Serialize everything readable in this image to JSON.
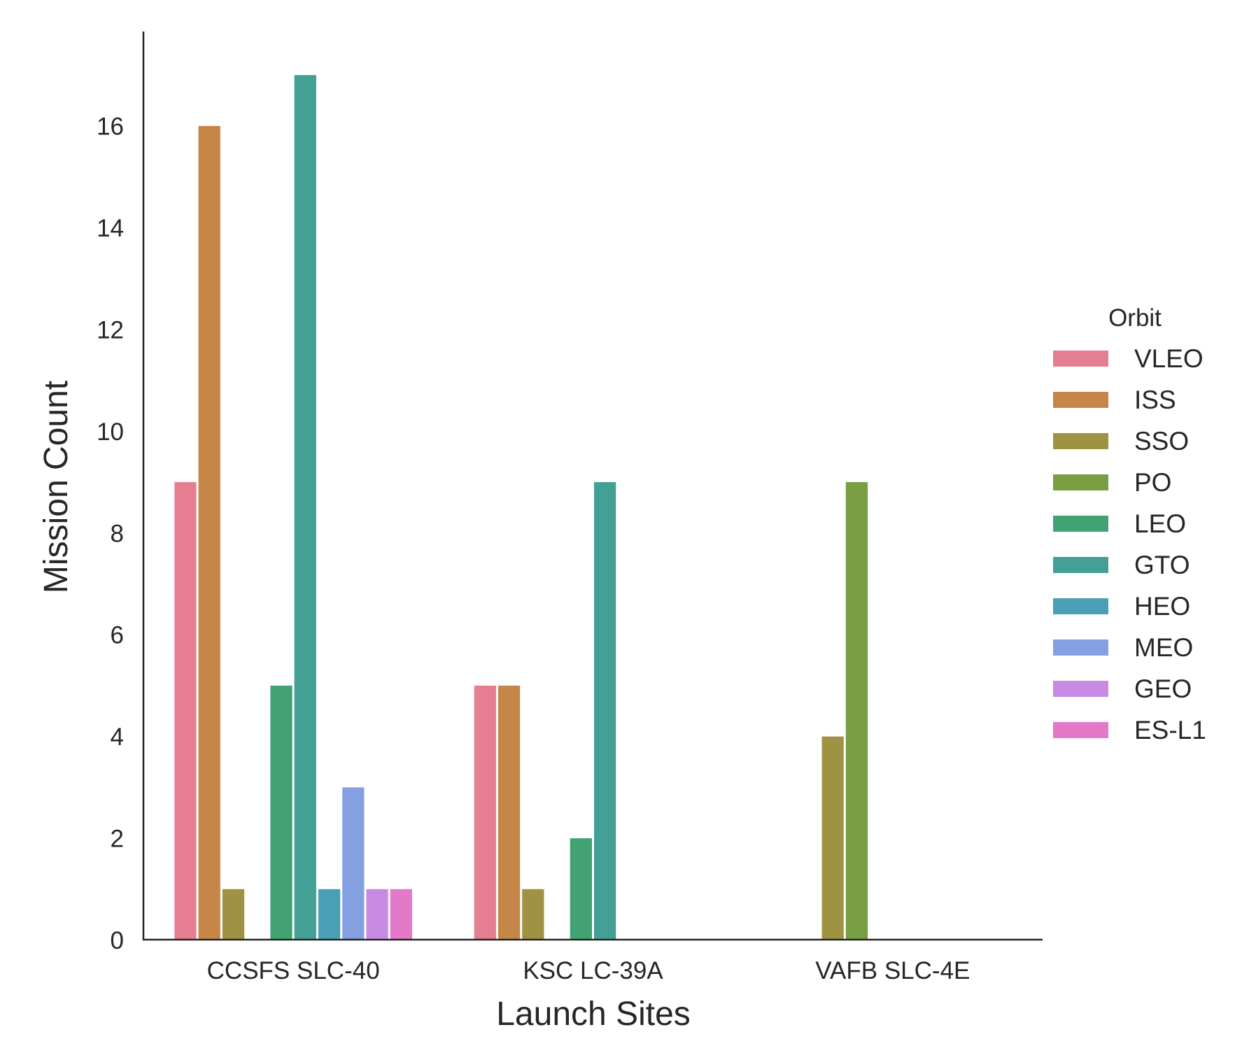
{
  "chart_data": {
    "type": "bar",
    "title": "",
    "xlabel": "Launch Sites",
    "ylabel": "Mission Count",
    "categories": [
      "CCSFS SLC-40",
      "KSC LC-39A",
      "VAFB SLC-4E"
    ],
    "ylim": [
      0,
      17.85
    ],
    "yticks": [
      0,
      2,
      4,
      6,
      8,
      10,
      12,
      14,
      16
    ],
    "grid": false,
    "legend": {
      "title": "Orbit",
      "placement": "right"
    },
    "series": [
      {
        "name": "VLEO",
        "color": "#e67e91",
        "values": [
          9,
          5,
          0
        ]
      },
      {
        "name": "ISS",
        "color": "#c68647",
        "values": [
          16,
          5,
          0
        ]
      },
      {
        "name": "SSO",
        "color": "#a09243",
        "values": [
          1,
          1,
          4
        ]
      },
      {
        "name": "PO",
        "color": "#779e41",
        "values": [
          0,
          0,
          9
        ]
      },
      {
        "name": "LEO",
        "color": "#42a273",
        "values": [
          5,
          2,
          0
        ]
      },
      {
        "name": "GTO",
        "color": "#449f95",
        "values": [
          17,
          9,
          0
        ]
      },
      {
        "name": "HEO",
        "color": "#499fb6",
        "values": [
          1,
          0,
          0
        ]
      },
      {
        "name": "MEO",
        "color": "#85a0e1",
        "values": [
          3,
          0,
          0
        ]
      },
      {
        "name": "GEO",
        "color": "#c98ae4",
        "values": [
          1,
          0,
          0
        ]
      },
      {
        "name": "ES-L1",
        "color": "#e479c9",
        "values": [
          1,
          0,
          0
        ]
      }
    ]
  }
}
